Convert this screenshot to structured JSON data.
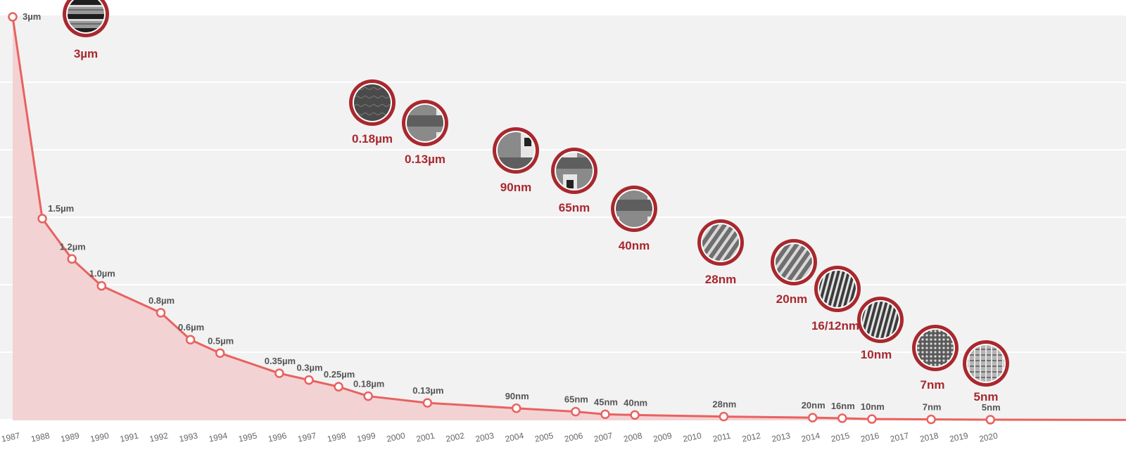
{
  "chart_data": {
    "type": "area",
    "title": "",
    "xlabel": "",
    "ylabel": "",
    "x": [
      1987,
      1988,
      1989,
      1990,
      1992,
      1993,
      1994,
      1996,
      1997,
      1998,
      1999,
      2001,
      2004,
      2006,
      2007,
      2008,
      2011,
      2014,
      2015,
      2016,
      2018,
      2020
    ],
    "series": [
      {
        "values": [
          3,
          1.5,
          1.2,
          1.0,
          0.8,
          0.6,
          0.5,
          0.35,
          0.3,
          0.25,
          0.18,
          0.13,
          0.09,
          0.065,
          0.045,
          0.04,
          0.028,
          0.02,
          0.016,
          0.01,
          0.007,
          0.005
        ],
        "labels": [
          "3µm",
          "1.5µm",
          "1.2µm",
          "1.0µm",
          "0.8µm",
          "0.6µm",
          "0.5µm",
          "0.35µm",
          "0.3µm",
          "0.25µm",
          "0.18µm",
          "0.13µm",
          "90nm",
          "65nm",
          "45nm",
          "40nm",
          "28nm",
          "20nm",
          "16nm",
          "10nm",
          "7nm",
          "5nm"
        ]
      }
    ],
    "x_ticks": [
      "1987",
      "1988",
      "1989",
      "1990",
      "1991",
      "1992",
      "1993",
      "1994",
      "1995",
      "1996",
      "1997",
      "1998",
      "1999",
      "2000",
      "2001",
      "2002",
      "2003",
      "2004",
      "2005",
      "2006",
      "2007",
      "2008",
      "2009",
      "2010",
      "2011",
      "2012",
      "2013",
      "2014",
      "2015",
      "2016",
      "2017",
      "2018",
      "2019",
      "2020"
    ],
    "ylim": [
      0,
      3
    ],
    "grid": true,
    "colors": {
      "line": "#e8625f",
      "fill": "#f3d2d4",
      "node_ring": "#a8282e",
      "label": "#555555",
      "node_label": "#a8282e",
      "background_band": "#f2f2f2"
    },
    "nodes": [
      {
        "label": "3µm",
        "texture": "layered"
      },
      {
        "label": "0.18µm",
        "texture": "dark-layer"
      },
      {
        "label": "0.13µm",
        "texture": "gate"
      },
      {
        "label": "90nm",
        "texture": "gate"
      },
      {
        "label": "65nm",
        "texture": "gate"
      },
      {
        "label": "40nm",
        "texture": "gate"
      },
      {
        "label": "28nm",
        "texture": "fins"
      },
      {
        "label": "20nm",
        "texture": "fins"
      },
      {
        "label": "16/12nm",
        "texture": "lines"
      },
      {
        "label": "10nm",
        "texture": "lines"
      },
      {
        "label": "7nm",
        "texture": "dots"
      },
      {
        "label": "5nm",
        "texture": "grid"
      }
    ]
  }
}
